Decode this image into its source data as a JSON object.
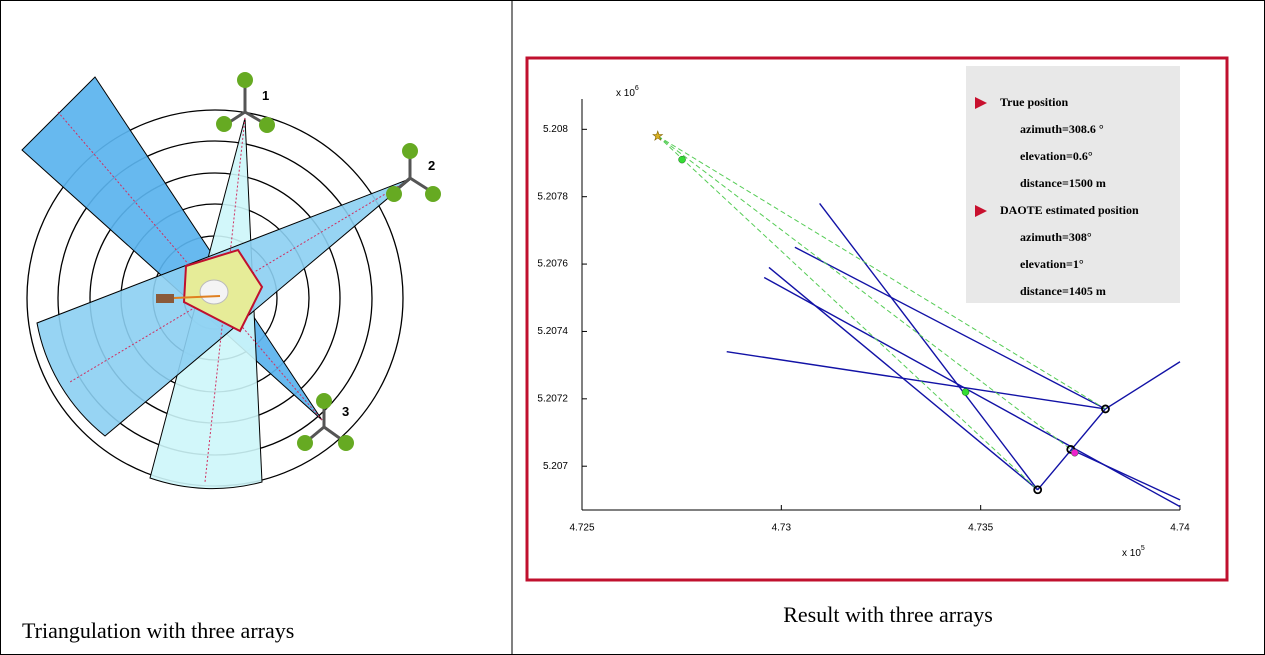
{
  "table": {
    "cells": [
      {
        "caption": "Triangulation with three arrays",
        "diagram": {
          "array_labels": [
            "1",
            "2",
            "3"
          ]
        }
      },
      {
        "caption": "Result with three arrays",
        "chart": {
          "type": "line",
          "xlim": [
            4.725,
            4.74
          ],
          "ylim": [
            5.20687,
            5.20809
          ],
          "xticks": [
            4.725,
            4.73,
            4.735,
            4.74
          ],
          "yticks": [
            5.207,
            5.2072,
            5.2074,
            5.2076,
            5.2078,
            5.208
          ],
          "x_multiplier": {
            "base": "x 10",
            "exponent": "5"
          },
          "y_multiplier": {
            "base": "x 10",
            "exponent": "6"
          },
          "lines": [
            {
              "color": "#1212a6",
              "style": "solid",
              "x": [
                4.73034,
                4.73813
              ],
              "y": [
                5.20765,
                5.20717
              ]
            },
            {
              "color": "#1212a6",
              "style": "solid",
              "x": [
                4.72863,
                4.73813
              ],
              "y": [
                5.20734,
                5.20717
              ]
            },
            {
              "color": "#1212a6",
              "style": "solid",
              "x": [
                4.73096,
                4.73643
              ],
              "y": [
                5.20778,
                5.20693
              ]
            },
            {
              "color": "#1212a6",
              "style": "solid",
              "x": [
                4.72969,
                4.73643
              ],
              "y": [
                5.20759,
                5.20693
              ]
            },
            {
              "color": "#1212a6",
              "style": "solid",
              "x": [
                4.72957,
                4.74
              ],
              "y": [
                5.20756,
                5.20688
              ]
            },
            {
              "color": "#1212a6",
              "style": "solid",
              "x": [
                4.73643,
                4.73813,
                4.74
              ],
              "y": [
                5.20693,
                5.20717,
                5.20731
              ]
            },
            {
              "color": "#1212a6",
              "style": "solid",
              "x": [
                4.73726,
                4.74
              ],
              "y": [
                5.20705,
                5.2069
              ]
            },
            {
              "color": "#55cc55",
              "style": "dashed",
              "x": [
                4.7269,
                4.73813
              ],
              "y": [
                5.20798,
                5.20717
              ]
            },
            {
              "color": "#55cc55",
              "style": "dashed",
              "x": [
                4.7269,
                4.73726
              ],
              "y": [
                5.20798,
                5.20705
              ]
            },
            {
              "color": "#55cc55",
              "style": "dashed",
              "x": [
                4.7269,
                4.73643
              ],
              "y": [
                5.20798,
                5.20693
              ]
            }
          ],
          "points": [
            {
              "marker": "ring",
              "color": "#000000",
              "x": [
                4.73813,
                4.73726,
                4.73643
              ],
              "y": [
                5.20717,
                5.20705,
                5.20693
              ]
            },
            {
              "marker": "dot",
              "color": "#33dd33",
              "x": [
                4.72751,
                4.73462
              ],
              "y": [
                5.20791,
                5.20722
              ]
            },
            {
              "marker": "dot",
              "color": "#ee22cc",
              "x": [
                4.73736
              ],
              "y": [
                5.20704
              ]
            },
            {
              "marker": "star",
              "color": "#d8b020",
              "x": [
                4.7269
              ],
              "y": [
                5.20798
              ]
            }
          ],
          "legend": [
            {
              "title": "True position",
              "color": "#c8102e",
              "lines": [
                "azimuth=308.6 °",
                "elevation=0.6°",
                "distance=1500 m"
              ]
            },
            {
              "title": "DAOTE estimated position",
              "color": "#c8102e",
              "lines": [
                "azimuth=308°",
                "elevation=1°",
                "distance=1405 m"
              ]
            }
          ]
        }
      }
    ]
  }
}
